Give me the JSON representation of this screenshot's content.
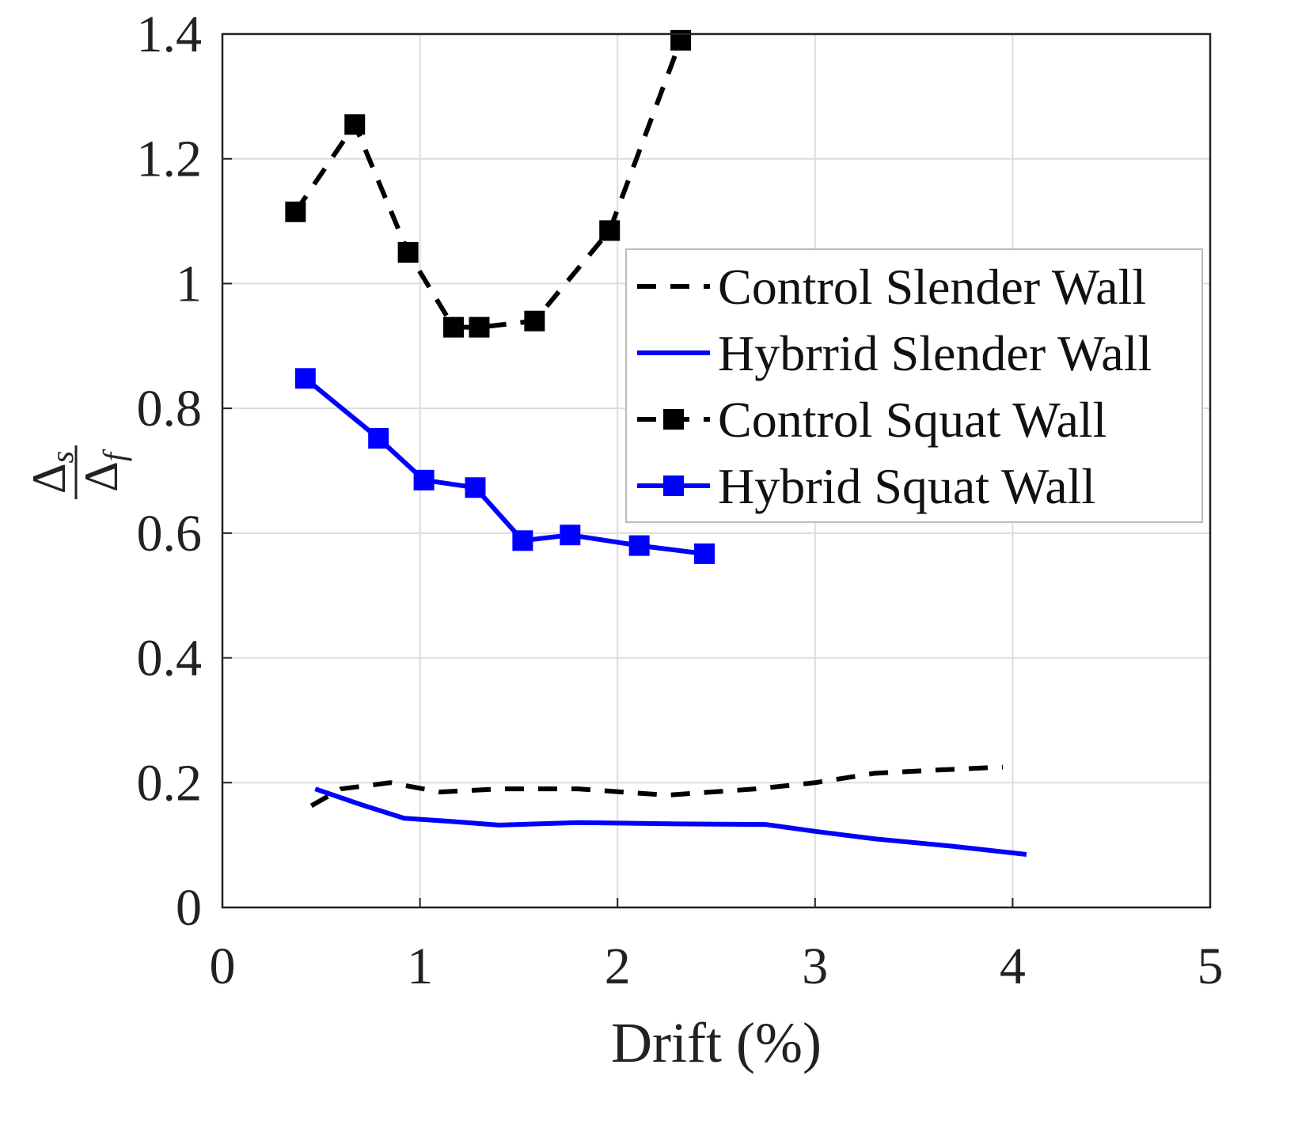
{
  "chart_data": {
    "type": "line",
    "title": "",
    "xlabel": "Drift  (%)",
    "ylabel": {
      "numerator": "Δ",
      "numerator_sub": "s",
      "denominator": "Δ",
      "denominator_sub": "f"
    },
    "xlim": [
      0,
      5
    ],
    "ylim": [
      0,
      1.4
    ],
    "xticks": [
      "0",
      "1",
      "2",
      "3",
      "4",
      "5"
    ],
    "yticks": [
      "0",
      "0.2",
      "0.4",
      "0.6",
      "0.8",
      "1",
      "1.2",
      "1.4"
    ],
    "grid": true,
    "legend_position": "right",
    "series": [
      {
        "name": "Control Slender Wall",
        "color": "#000000",
        "dashed": true,
        "markers": false,
        "x": [
          0.45,
          0.6,
          0.85,
          1.1,
          1.4,
          1.8,
          2.25,
          2.7,
          3.0,
          3.3,
          3.6,
          3.95
        ],
        "y": [
          0.163,
          0.19,
          0.2,
          0.185,
          0.19,
          0.19,
          0.18,
          0.19,
          0.2,
          0.215,
          0.22,
          0.225
        ]
      },
      {
        "name": "Hybrrid Slender Wall",
        "color": "#0000ff",
        "dashed": false,
        "markers": false,
        "x": [
          0.47,
          0.7,
          0.92,
          1.15,
          1.4,
          1.8,
          2.3,
          2.75,
          3.0,
          3.3,
          3.7,
          4.07
        ],
        "y": [
          0.19,
          0.165,
          0.143,
          0.138,
          0.132,
          0.136,
          0.134,
          0.133,
          0.122,
          0.11,
          0.098,
          0.085
        ]
      },
      {
        "name": "Control Squat Wall",
        "color": "#000000",
        "dashed": true,
        "markers": true,
        "x": [
          0.37,
          0.67,
          0.94,
          1.17,
          1.3,
          1.58,
          1.96,
          2.32
        ],
        "y": [
          1.115,
          1.255,
          1.05,
          0.93,
          0.93,
          0.94,
          1.085,
          1.39
        ]
      },
      {
        "name": "Hybrid Squat Wall",
        "color": "#0000ff",
        "dashed": false,
        "markers": true,
        "x": [
          0.42,
          0.79,
          1.02,
          1.28,
          1.52,
          1.76,
          2.11,
          2.44
        ],
        "y": [
          0.848,
          0.752,
          0.685,
          0.673,
          0.588,
          0.597,
          0.58,
          0.567
        ]
      }
    ]
  }
}
